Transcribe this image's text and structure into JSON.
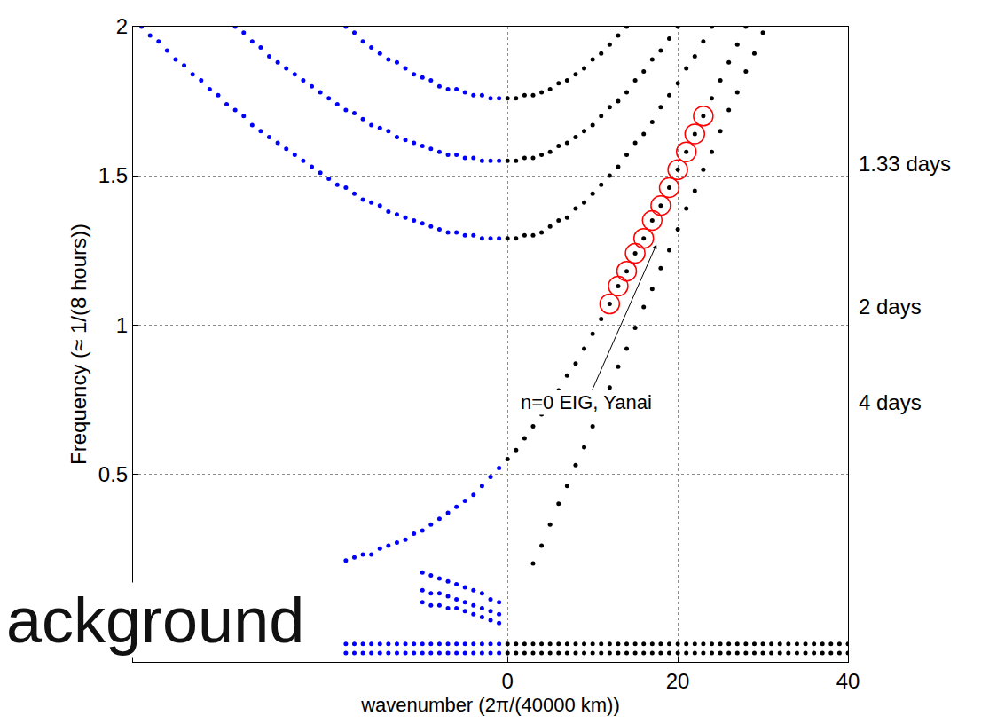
{
  "chart_data": {
    "type": "scatter",
    "xlabel": "wavenumber (2π/(40000 km))",
    "ylabel": "Frequency (≈ 1/(8 hours))",
    "xlim": [
      -44,
      40
    ],
    "ylim": [
      -0.13,
      2
    ],
    "xticks": [
      0,
      20,
      40
    ],
    "yticks": [
      0.5,
      1,
      1.5,
      2
    ],
    "grid": true,
    "series": [
      {
        "color": "#0000ff",
        "marker": "point",
        "x": [
          -43,
          -42,
          -41,
          -40,
          -39,
          -38,
          -37,
          -36,
          -35,
          -34,
          -33,
          -32,
          -31,
          -30,
          -29,
          -28,
          -27,
          -26,
          -25,
          -24,
          -23,
          -22,
          -21,
          -20,
          -19,
          -18,
          -17,
          -16,
          -15,
          -14,
          -13,
          -12,
          -11,
          -10,
          -9,
          -8,
          -7,
          -6,
          -5,
          -4,
          -3,
          -2,
          -1,
          -32,
          -31,
          -30,
          -29,
          -28,
          -27,
          -26,
          -25,
          -24,
          -23,
          -22,
          -21,
          -20,
          -19,
          -18,
          -17,
          -16,
          -15,
          -14,
          -13,
          -12,
          -11,
          -10,
          -9,
          -8,
          -7,
          -6,
          -5,
          -4,
          -3,
          -2,
          -1,
          -19,
          -18,
          -17,
          -16,
          -15,
          -14,
          -13,
          -12,
          -11,
          -10,
          -9,
          -8,
          -7,
          -6,
          -5,
          -4,
          -3,
          -2,
          -1,
          -19,
          -18,
          -17,
          -16,
          -15,
          -14,
          -13,
          -12,
          -11,
          -10,
          -9,
          -8,
          -7,
          -6,
          -5,
          -4,
          -3,
          -2,
          -1,
          -10,
          -9,
          -8,
          -7,
          -6,
          -5,
          -4,
          -3,
          -2,
          -1,
          -10,
          -9,
          -8,
          -7,
          -6,
          -5,
          -4,
          -3,
          -2,
          -1,
          -10,
          -9,
          -8,
          -7,
          -6,
          -5,
          -4,
          -3,
          -2,
          -1,
          -19,
          -18,
          -17,
          -16,
          -15,
          -14,
          -13,
          -12,
          -11,
          -10,
          -9,
          -8,
          -7,
          -6,
          -5,
          -4,
          -3,
          -2,
          -1,
          -19,
          -18,
          -17,
          -16,
          -15,
          -14,
          -13,
          -12,
          -11,
          -10,
          -9,
          -8,
          -7,
          -6,
          -5,
          -4,
          -3,
          -2,
          -1
        ],
        "values": [
          2.0,
          1.97,
          1.95,
          1.92,
          1.89,
          1.87,
          1.84,
          1.82,
          1.79,
          1.77,
          1.74,
          1.72,
          1.7,
          1.67,
          1.65,
          1.63,
          1.61,
          1.59,
          1.57,
          1.55,
          1.53,
          1.51,
          1.49,
          1.47,
          1.46,
          1.44,
          1.42,
          1.41,
          1.4,
          1.38,
          1.37,
          1.36,
          1.35,
          1.34,
          1.33,
          1.32,
          1.31,
          1.31,
          1.3,
          1.3,
          1.29,
          1.29,
          1.29,
          2.0,
          1.98,
          1.95,
          1.93,
          1.9,
          1.88,
          1.86,
          1.84,
          1.82,
          1.8,
          1.78,
          1.76,
          1.74,
          1.72,
          1.71,
          1.69,
          1.67,
          1.66,
          1.65,
          1.63,
          1.62,
          1.61,
          1.6,
          1.59,
          1.58,
          1.57,
          1.57,
          1.56,
          1.56,
          1.55,
          1.55,
          1.55,
          2.0,
          1.98,
          1.95,
          1.93,
          1.91,
          1.89,
          1.88,
          1.86,
          1.84,
          1.83,
          1.82,
          1.8,
          1.79,
          1.79,
          1.78,
          1.77,
          1.77,
          1.76,
          1.76,
          0.21,
          0.22,
          0.23,
          0.23,
          0.25,
          0.26,
          0.27,
          0.28,
          0.3,
          0.31,
          0.33,
          0.35,
          0.37,
          0.39,
          0.41,
          0.43,
          0.46,
          0.49,
          0.52,
          0.17,
          0.16,
          0.15,
          0.14,
          0.13,
          0.12,
          0.11,
          0.1,
          0.08,
          0.07,
          0.11,
          0.1,
          0.1,
          0.09,
          0.08,
          0.07,
          0.06,
          0.05,
          0.04,
          0.03,
          0.07,
          0.06,
          0.06,
          0.05,
          0.05,
          0.04,
          0.03,
          0.02,
          0.01,
          0,
          -0.07,
          -0.07,
          -0.07,
          -0.07,
          -0.07,
          -0.07,
          -0.07,
          -0.07,
          -0.07,
          -0.07,
          -0.07,
          -0.07,
          -0.07,
          -0.07,
          -0.07,
          -0.07,
          -0.07,
          -0.07,
          -0.07,
          -0.1,
          -0.1,
          -0.1,
          -0.1,
          -0.1,
          -0.1,
          -0.1,
          -0.1,
          -0.1,
          -0.1,
          -0.1,
          -0.1,
          -0.1,
          -0.1,
          -0.1,
          -0.1,
          -0.1,
          -0.1,
          -0.1
        ]
      },
      {
        "color": "#000000",
        "marker": "point",
        "x": [
          0,
          1,
          2,
          3,
          4,
          5,
          6,
          7,
          8,
          9,
          10,
          11,
          12,
          13,
          14,
          0,
          1,
          2,
          3,
          4,
          5,
          6,
          7,
          8,
          9,
          10,
          11,
          12,
          13,
          14,
          15,
          16,
          17,
          18,
          19,
          20,
          0,
          1,
          2,
          3,
          4,
          5,
          6,
          7,
          8,
          9,
          10,
          11,
          12,
          13,
          14,
          15,
          16,
          17,
          18,
          19,
          20,
          21,
          22,
          23,
          24,
          0,
          1,
          2,
          3,
          4,
          5,
          6,
          7,
          8,
          9,
          10,
          11,
          12,
          13,
          14,
          15,
          16,
          17,
          18,
          19,
          20,
          21,
          22,
          23,
          24,
          25,
          26,
          27,
          28,
          3,
          4,
          5,
          6,
          7,
          8,
          9,
          10,
          11,
          12,
          13,
          14,
          15,
          16,
          17,
          18,
          19,
          20,
          21,
          22,
          23,
          24,
          25,
          26,
          27,
          28,
          29,
          30,
          0,
          1,
          2,
          3,
          4,
          5,
          6,
          7,
          8,
          9,
          10,
          11,
          12,
          13,
          14,
          15,
          16,
          17,
          18,
          19,
          20,
          21,
          22,
          23,
          24,
          25,
          26,
          27,
          28,
          29,
          30,
          31,
          32,
          33,
          34,
          35,
          36,
          37,
          38,
          39,
          40,
          0,
          1,
          2,
          3,
          4,
          5,
          6,
          7,
          8,
          9,
          10,
          11,
          12,
          13,
          14,
          15,
          16,
          17,
          18,
          19,
          20,
          21,
          22,
          23,
          24,
          25,
          26,
          27,
          28,
          29,
          30,
          31,
          32,
          33,
          34,
          35,
          36,
          37,
          38,
          39,
          40
        ],
        "values": [
          1.76,
          1.76,
          1.77,
          1.77,
          1.78,
          1.79,
          1.81,
          1.82,
          1.84,
          1.86,
          1.89,
          1.91,
          1.94,
          1.97,
          2.0,
          1.55,
          1.55,
          1.56,
          1.56,
          1.57,
          1.58,
          1.6,
          1.61,
          1.63,
          1.65,
          1.67,
          1.7,
          1.73,
          1.75,
          1.78,
          1.82,
          1.85,
          1.89,
          1.92,
          1.96,
          2.0,
          1.29,
          1.29,
          1.3,
          1.3,
          1.31,
          1.33,
          1.35,
          1.36,
          1.39,
          1.41,
          1.44,
          1.47,
          1.5,
          1.53,
          1.57,
          1.61,
          1.64,
          1.68,
          1.73,
          1.77,
          1.81,
          1.86,
          1.9,
          1.95,
          2.0,
          0.55,
          0.58,
          0.62,
          0.66,
          0.7,
          0.74,
          0.78,
          0.83,
          0.87,
          0.92,
          0.97,
          1.02,
          1.07,
          1.13,
          1.18,
          1.24,
          1.29,
          1.35,
          1.4,
          1.46,
          1.52,
          1.58,
          1.64,
          1.7,
          1.76,
          1.82,
          1.88,
          1.94,
          2.0,
          0.2,
          0.26,
          0.33,
          0.4,
          0.46,
          0.53,
          0.59,
          0.66,
          0.73,
          0.79,
          0.86,
          0.92,
          0.99,
          1.06,
          1.12,
          1.19,
          1.25,
          1.32,
          1.39,
          1.45,
          1.52,
          1.58,
          1.65,
          1.72,
          1.78,
          1.85,
          1.91,
          1.98,
          -0.07,
          -0.07,
          -0.07,
          -0.07,
          -0.07,
          -0.07,
          -0.07,
          -0.07,
          -0.07,
          -0.07,
          -0.07,
          -0.07,
          -0.07,
          -0.07,
          -0.07,
          -0.07,
          -0.07,
          -0.07,
          -0.07,
          -0.07,
          -0.07,
          -0.07,
          -0.07,
          -0.07,
          -0.07,
          -0.07,
          -0.07,
          -0.07,
          -0.07,
          -0.07,
          -0.07,
          -0.07,
          -0.07,
          -0.07,
          -0.07,
          -0.07,
          -0.07,
          -0.07,
          -0.07,
          -0.07,
          -0.07,
          -0.1,
          -0.1,
          -0.1,
          -0.1,
          -0.1,
          -0.1,
          -0.1,
          -0.1,
          -0.1,
          -0.1,
          -0.1,
          -0.1,
          -0.1,
          -0.1,
          -0.1,
          -0.1,
          -0.1,
          -0.1,
          -0.1,
          -0.1,
          -0.1,
          -0.1,
          -0.1,
          -0.1,
          -0.1,
          -0.1,
          -0.1,
          -0.1,
          -0.1,
          -0.1,
          -0.1,
          -0.1,
          -0.1,
          -0.1,
          -0.1,
          -0.1,
          -0.1,
          -0.1,
          -0.1,
          -0.1,
          -0.1
        ]
      },
      {
        "color": "#ff0000",
        "marker": "open_circle",
        "x": [
          12,
          13,
          14,
          15,
          16,
          17,
          18,
          19,
          20,
          21,
          22,
          23
        ],
        "values": [
          1.07,
          1.13,
          1.18,
          1.24,
          1.29,
          1.35,
          1.4,
          1.46,
          1.52,
          1.58,
          1.64,
          1.7
        ]
      }
    ],
    "annotations": [
      {
        "text": "n=0 EIG, Yanai",
        "x": 9.3,
        "y": 0.74,
        "arrow_x": 17.5,
        "arrow_y": 1.27
      },
      {
        "text": "1.33 days",
        "y": 1.54
      },
      {
        "text": "2 days",
        "y": 1.06
      },
      {
        "text": "4 days",
        "y": 0.74
      }
    ],
    "overlay_text": "ackground"
  }
}
